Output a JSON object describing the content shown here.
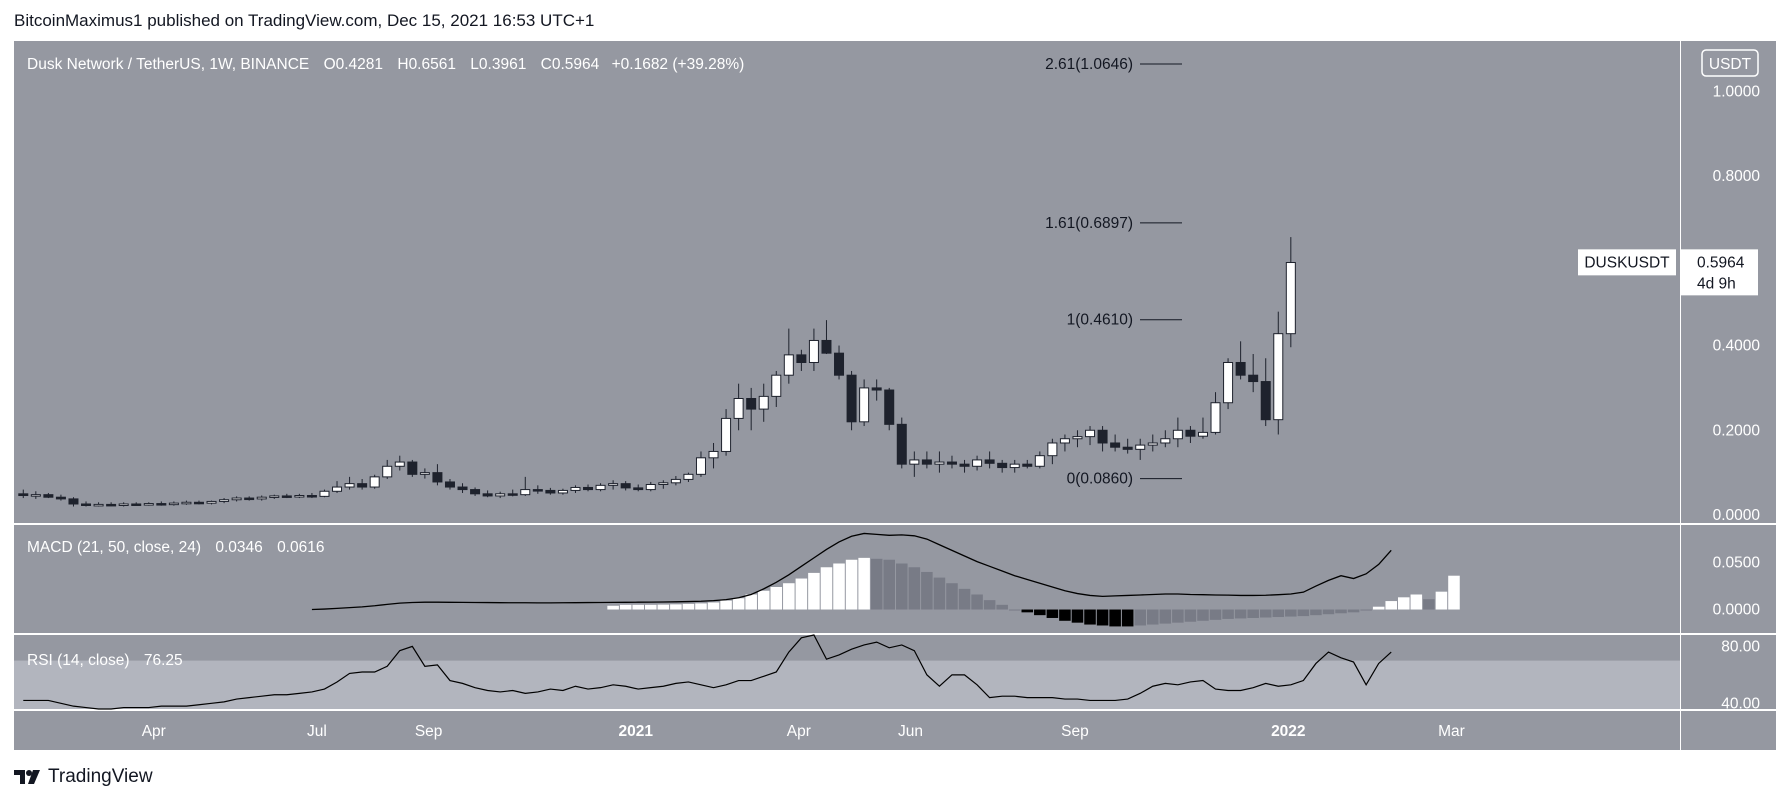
{
  "header": {
    "text": "BitcoinMaximus1 published on TradingView.com, Dec 15, 2021 16:53 UTC+1"
  },
  "footer": {
    "brand": "TradingView"
  },
  "colors": {
    "pane_bg": "#9598a1",
    "rsi_band": "#b2b5be",
    "candle_up": "#ffffff",
    "candle_down": "#1e222d",
    "line": "#000000",
    "hist_strong_up": "#ffffff",
    "hist_weak_up": "#e0e3eb",
    "hist_weak_down": "#787b86",
    "hist_strong_down": "#000000"
  },
  "chart_data": {
    "type": "candlestick",
    "symbol": "Dusk Network / TetherUS, 1W, BINANCE",
    "currency": "USDT",
    "ohlc_legend": {
      "O": "0.4281",
      "H": "0.6561",
      "L": "0.3961",
      "C": "0.5964",
      "change": "+0.1682 (+39.28%)"
    },
    "last_price": {
      "ticker": "DUSKUSDT",
      "price": "0.5964",
      "countdown": "4d 9h"
    },
    "price_axis": {
      "range": [
        0,
        1.1
      ],
      "ticks": [
        "1.0000",
        "0.8000",
        "0.4000",
        "0.2000",
        "0.0000"
      ],
      "tick_values": [
        1.0,
        0.8,
        0.4,
        0.2,
        0.0
      ]
    },
    "time_axis": {
      "labels": [
        "Apr",
        "Jul",
        "Sep",
        "2021",
        "Apr",
        "Jun",
        "Sep",
        "2022",
        "Mar"
      ],
      "bold": [
        false,
        false,
        false,
        true,
        false,
        false,
        false,
        true,
        false
      ],
      "label_bar_index": [
        10.4,
        23.4,
        32.3,
        48.8,
        61.8,
        70.7,
        83.8,
        100.8,
        113.8
      ]
    },
    "fib_levels": [
      {
        "label": "2.61(1.0646)",
        "price": 1.0646
      },
      {
        "label": "1.61(0.6897)",
        "price": 0.6897
      },
      {
        "label": "1(0.4610)",
        "price": 0.461
      },
      {
        "label": "0(0.0860)",
        "price": 0.086
      }
    ],
    "candles": [
      [
        0.05,
        0.06,
        0.04,
        0.046
      ],
      [
        0.046,
        0.056,
        0.038,
        0.048
      ],
      [
        0.048,
        0.052,
        0.04,
        0.042
      ],
      [
        0.042,
        0.048,
        0.034,
        0.038
      ],
      [
        0.038,
        0.042,
        0.02,
        0.026
      ],
      [
        0.026,
        0.032,
        0.02,
        0.024
      ],
      [
        0.024,
        0.03,
        0.02,
        0.025
      ],
      [
        0.025,
        0.03,
        0.021,
        0.024
      ],
      [
        0.024,
        0.03,
        0.02,
        0.026
      ],
      [
        0.026,
        0.03,
        0.022,
        0.025
      ],
      [
        0.025,
        0.03,
        0.022,
        0.027
      ],
      [
        0.027,
        0.032,
        0.022,
        0.026
      ],
      [
        0.026,
        0.032,
        0.022,
        0.028
      ],
      [
        0.028,
        0.034,
        0.024,
        0.03
      ],
      [
        0.03,
        0.034,
        0.025,
        0.028
      ],
      [
        0.028,
        0.034,
        0.025,
        0.032
      ],
      [
        0.032,
        0.04,
        0.028,
        0.036
      ],
      [
        0.036,
        0.044,
        0.032,
        0.04
      ],
      [
        0.04,
        0.044,
        0.034,
        0.038
      ],
      [
        0.038,
        0.046,
        0.034,
        0.042
      ],
      [
        0.042,
        0.048,
        0.038,
        0.045
      ],
      [
        0.045,
        0.05,
        0.04,
        0.043
      ],
      [
        0.043,
        0.05,
        0.04,
        0.046
      ],
      [
        0.046,
        0.052,
        0.04,
        0.044
      ],
      [
        0.044,
        0.06,
        0.042,
        0.056
      ],
      [
        0.056,
        0.08,
        0.052,
        0.066
      ],
      [
        0.066,
        0.09,
        0.06,
        0.074
      ],
      [
        0.074,
        0.085,
        0.06,
        0.066
      ],
      [
        0.066,
        0.095,
        0.062,
        0.09
      ],
      [
        0.09,
        0.13,
        0.085,
        0.115
      ],
      [
        0.115,
        0.14,
        0.105,
        0.125
      ],
      [
        0.125,
        0.13,
        0.09,
        0.096
      ],
      [
        0.096,
        0.11,
        0.086,
        0.1
      ],
      [
        0.1,
        0.12,
        0.07,
        0.078
      ],
      [
        0.078,
        0.085,
        0.06,
        0.066
      ],
      [
        0.066,
        0.075,
        0.052,
        0.06
      ],
      [
        0.06,
        0.065,
        0.045,
        0.05
      ],
      [
        0.05,
        0.058,
        0.042,
        0.045
      ],
      [
        0.045,
        0.055,
        0.04,
        0.05
      ],
      [
        0.05,
        0.06,
        0.044,
        0.048
      ],
      [
        0.048,
        0.09,
        0.045,
        0.06
      ],
      [
        0.06,
        0.07,
        0.05,
        0.058
      ],
      [
        0.058,
        0.064,
        0.048,
        0.052
      ],
      [
        0.052,
        0.062,
        0.048,
        0.058
      ],
      [
        0.058,
        0.07,
        0.052,
        0.065
      ],
      [
        0.065,
        0.072,
        0.056,
        0.06
      ],
      [
        0.06,
        0.075,
        0.056,
        0.07
      ],
      [
        0.07,
        0.082,
        0.06,
        0.074
      ],
      [
        0.074,
        0.08,
        0.058,
        0.064
      ],
      [
        0.064,
        0.072,
        0.056,
        0.06
      ],
      [
        0.06,
        0.078,
        0.056,
        0.072
      ],
      [
        0.072,
        0.082,
        0.062,
        0.076
      ],
      [
        0.076,
        0.092,
        0.07,
        0.084
      ],
      [
        0.084,
        0.1,
        0.078,
        0.096
      ],
      [
        0.096,
        0.15,
        0.09,
        0.135
      ],
      [
        0.135,
        0.17,
        0.11,
        0.15
      ],
      [
        0.15,
        0.25,
        0.14,
        0.228
      ],
      [
        0.228,
        0.31,
        0.2,
        0.275
      ],
      [
        0.275,
        0.3,
        0.2,
        0.25
      ],
      [
        0.25,
        0.31,
        0.22,
        0.28
      ],
      [
        0.28,
        0.34,
        0.255,
        0.33
      ],
      [
        0.33,
        0.44,
        0.31,
        0.378
      ],
      [
        0.378,
        0.39,
        0.34,
        0.36
      ],
      [
        0.36,
        0.44,
        0.34,
        0.412
      ],
      [
        0.412,
        0.46,
        0.38,
        0.382
      ],
      [
        0.382,
        0.4,
        0.32,
        0.33
      ],
      [
        0.33,
        0.34,
        0.2,
        0.22
      ],
      [
        0.22,
        0.32,
        0.21,
        0.3
      ],
      [
        0.3,
        0.32,
        0.27,
        0.295
      ],
      [
        0.295,
        0.3,
        0.2,
        0.214
      ],
      [
        0.214,
        0.23,
        0.11,
        0.12
      ],
      [
        0.12,
        0.15,
        0.09,
        0.13
      ],
      [
        0.13,
        0.15,
        0.11,
        0.12
      ],
      [
        0.12,
        0.15,
        0.1,
        0.125
      ],
      [
        0.125,
        0.14,
        0.11,
        0.12
      ],
      [
        0.12,
        0.13,
        0.1,
        0.115
      ],
      [
        0.115,
        0.14,
        0.105,
        0.13
      ],
      [
        0.13,
        0.15,
        0.11,
        0.122
      ],
      [
        0.122,
        0.13,
        0.1,
        0.112
      ],
      [
        0.112,
        0.13,
        0.1,
        0.12
      ],
      [
        0.12,
        0.13,
        0.11,
        0.115
      ],
      [
        0.115,
        0.15,
        0.11,
        0.14
      ],
      [
        0.14,
        0.18,
        0.12,
        0.17
      ],
      [
        0.17,
        0.19,
        0.15,
        0.18
      ],
      [
        0.18,
        0.2,
        0.16,
        0.185
      ],
      [
        0.185,
        0.21,
        0.165,
        0.2
      ],
      [
        0.2,
        0.21,
        0.15,
        0.17
      ],
      [
        0.17,
        0.19,
        0.15,
        0.16
      ],
      [
        0.16,
        0.18,
        0.145,
        0.155
      ],
      [
        0.155,
        0.18,
        0.13,
        0.165
      ],
      [
        0.165,
        0.19,
        0.15,
        0.17
      ],
      [
        0.17,
        0.2,
        0.16,
        0.18
      ],
      [
        0.18,
        0.23,
        0.16,
        0.2
      ],
      [
        0.2,
        0.21,
        0.17,
        0.186
      ],
      [
        0.186,
        0.23,
        0.18,
        0.195
      ],
      [
        0.195,
        0.29,
        0.19,
        0.265
      ],
      [
        0.265,
        0.37,
        0.25,
        0.36
      ],
      [
        0.36,
        0.41,
        0.32,
        0.33
      ],
      [
        0.33,
        0.38,
        0.29,
        0.315
      ],
      [
        0.315,
        0.37,
        0.21,
        0.225
      ],
      [
        0.225,
        0.48,
        0.19,
        0.428
      ],
      [
        0.428,
        0.656,
        0.396,
        0.596
      ]
    ],
    "macd": {
      "label": "MACD (21, 50, close, 24)",
      "val1": "0.0346",
      "val2": "0.0616",
      "axis_ticks": [
        "0.0500",
        "0.0000"
      ],
      "tick_values": [
        0.05,
        0.0
      ],
      "range": [
        -0.025,
        0.09
      ],
      "line_start_index": 23,
      "line": [
        0.0,
        0.0005,
        0.0012,
        0.002,
        0.0028,
        0.004,
        0.0055,
        0.0068,
        0.0075,
        0.0078,
        0.0078,
        0.0077,
        0.0076,
        0.0075,
        0.0074,
        0.0073,
        0.0072,
        0.0072,
        0.0071,
        0.0071,
        0.0072,
        0.0073,
        0.0074,
        0.0075,
        0.0076,
        0.0077,
        0.0078,
        0.0079,
        0.008,
        0.0082,
        0.0085,
        0.0088,
        0.0095,
        0.0105,
        0.0125,
        0.016,
        0.022,
        0.029,
        0.037,
        0.046,
        0.055,
        0.064,
        0.072,
        0.078,
        0.081,
        0.08,
        0.079,
        0.0795,
        0.0785,
        0.075,
        0.069,
        0.063,
        0.057,
        0.051,
        0.046,
        0.041,
        0.036,
        0.032,
        0.028,
        0.024,
        0.02,
        0.017,
        0.015,
        0.014,
        0.0145,
        0.015,
        0.0155,
        0.016,
        0.0165,
        0.0165,
        0.016,
        0.0158,
        0.0155,
        0.0153,
        0.015,
        0.015,
        0.0152,
        0.0158,
        0.0165,
        0.0185,
        0.025,
        0.031,
        0.036,
        0.033,
        0.038,
        0.048,
        0.063
      ],
      "hist_start_index": 47,
      "hist": [
        0.004,
        0.005,
        0.005,
        0.005,
        0.0052,
        0.0055,
        0.006,
        0.0065,
        0.0075,
        0.0095,
        0.012,
        0.016,
        0.02,
        0.024,
        0.028,
        0.033,
        0.039,
        0.045,
        0.049,
        0.053,
        0.055,
        0.054,
        0.053,
        0.049,
        0.045,
        0.04,
        0.034,
        0.028,
        0.022,
        0.016,
        0.01,
        0.005,
        0.0,
        -0.003,
        -0.006,
        -0.009,
        -0.012,
        -0.014,
        -0.016,
        -0.017,
        -0.018,
        -0.018,
        -0.017,
        -0.016,
        -0.015,
        -0.014,
        -0.013,
        -0.012,
        -0.011,
        -0.01,
        -0.0095,
        -0.009,
        -0.0085,
        -0.008,
        -0.0075,
        -0.007,
        -0.006,
        -0.005,
        -0.004,
        -0.003,
        -0.001,
        0.003,
        0.009,
        0.013,
        0.016,
        0.011,
        0.019,
        0.036
      ]
    },
    "rsi": {
      "label": "RSI (14, close)",
      "value": "76.25",
      "axis_ticks": [
        "80.00",
        "40.00"
      ],
      "tick_values": [
        80,
        40
      ],
      "range": [
        36,
        88
      ],
      "band": [
        30,
        70
      ],
      "values": [
        42,
        42,
        42,
        40,
        38,
        37,
        36,
        36,
        37,
        37,
        37,
        38,
        38,
        38,
        39,
        40,
        41,
        43,
        44,
        45,
        46,
        46,
        47,
        48,
        50,
        55,
        61,
        62,
        62,
        66,
        77,
        80,
        66,
        67,
        56,
        54,
        51,
        49,
        48,
        49,
        47,
        48,
        50,
        49,
        52,
        50,
        51,
        53,
        52,
        50,
        51,
        52,
        54,
        55,
        53,
        51,
        53,
        56,
        56,
        59,
        62,
        76,
        86,
        88,
        71,
        74,
        78,
        81,
        83,
        79,
        81,
        77,
        60,
        52,
        60,
        60,
        53,
        44,
        45,
        45,
        44,
        44,
        44,
        43,
        43,
        42,
        42,
        42,
        43,
        47,
        52,
        54,
        53,
        55,
        56,
        50,
        49,
        49,
        51,
        54,
        52,
        53,
        56,
        68,
        76,
        72,
        69,
        53,
        68,
        76
      ]
    }
  }
}
